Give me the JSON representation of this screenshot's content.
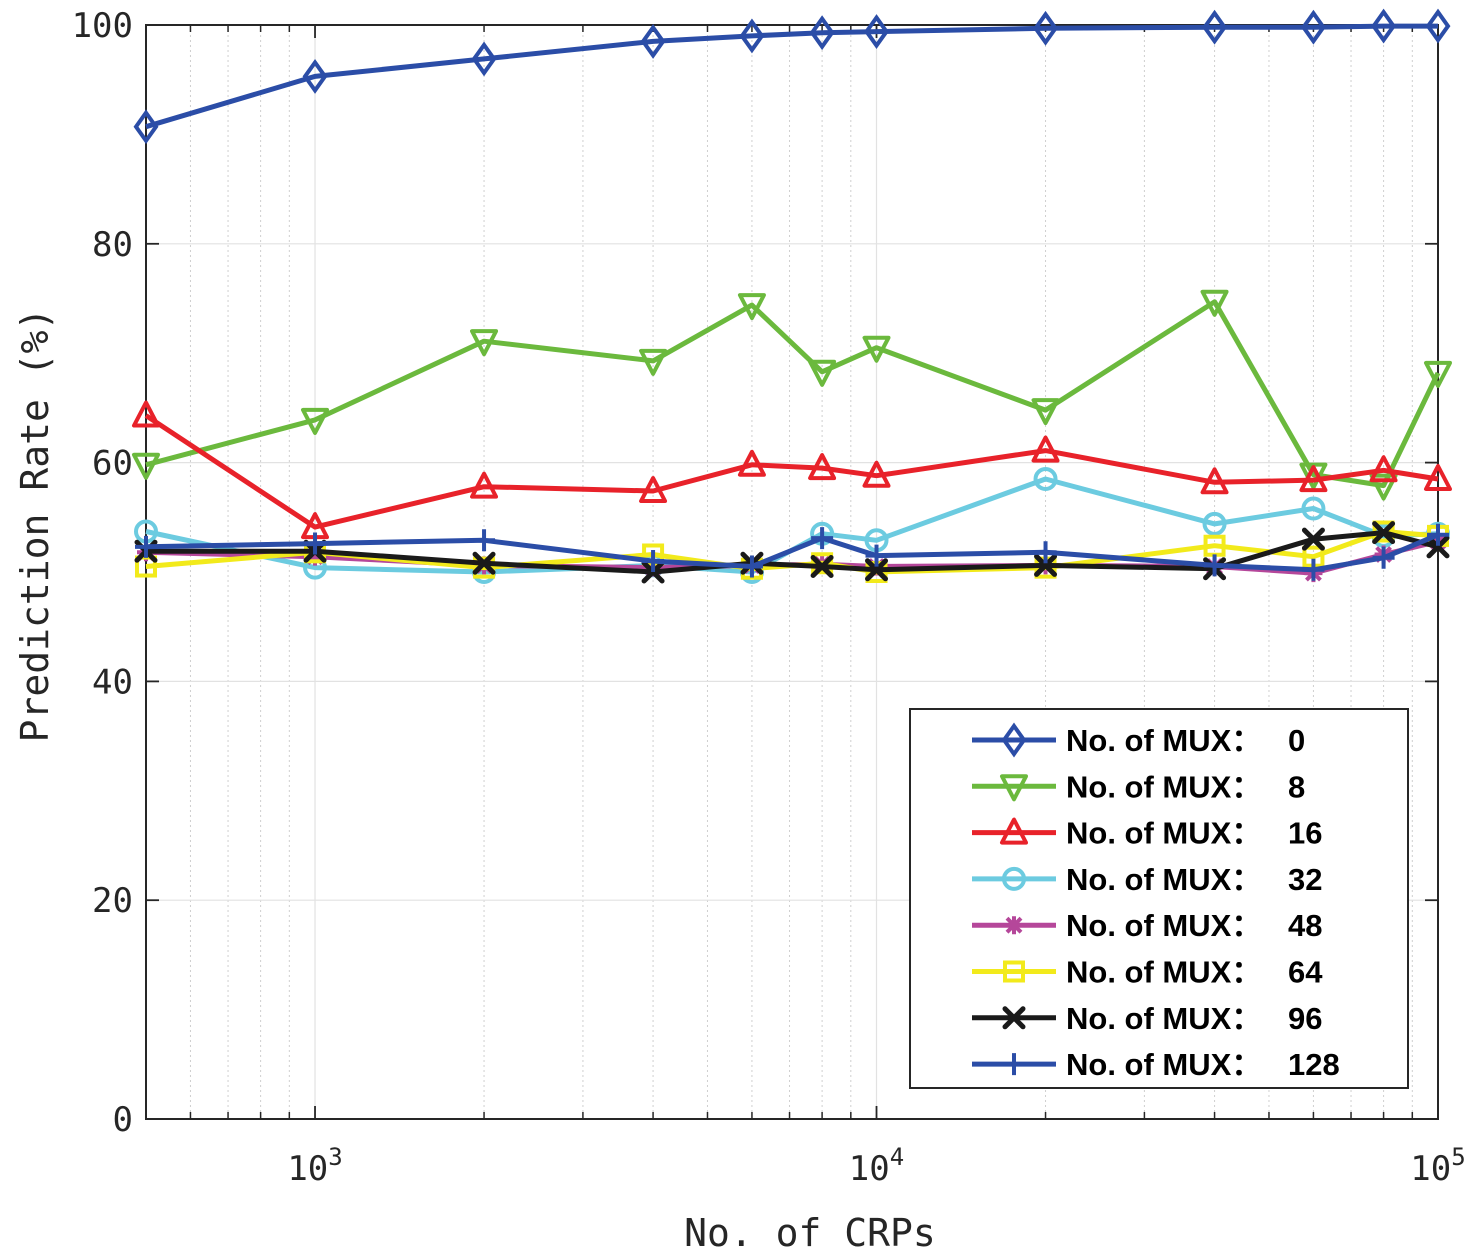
{
  "chart_data": {
    "type": "line",
    "xscale": "log",
    "xlabel": "No. of CRPs",
    "ylabel": "Prediction Rate (%)",
    "xlim": [
      500,
      100000
    ],
    "ylim": [
      0,
      100
    ],
    "yticks": [
      0,
      20,
      40,
      60,
      80,
      100
    ],
    "xticks": [
      {
        "value": 1000,
        "base": "10",
        "exp": "3"
      },
      {
        "value": 10000,
        "base": "10",
        "exp": "4"
      },
      {
        "value": 100000,
        "base": "10",
        "exp": "5"
      }
    ],
    "grid": true,
    "legend_position": "bottom-right",
    "x": [
      500,
      1000,
      2000,
      4000,
      6000,
      8000,
      10000,
      20000,
      40000,
      60000,
      80000,
      100000
    ],
    "series": [
      {
        "name": "No. of MUX：0",
        "label": "No. of MUX：",
        "label_value": "0",
        "color": "#2B4DA7",
        "marker": "diamond",
        "values": [
          90.7,
          95.3,
          96.9,
          98.5,
          99.0,
          99.3,
          99.4,
          99.7,
          99.8,
          99.8,
          99.9,
          99.9
        ]
      },
      {
        "name": "No. of MUX：8",
        "label": "No. of MUX：",
        "label_value": "8",
        "color": "#6BB93D",
        "marker": "triangle-down",
        "values": [
          59.8,
          63.9,
          71.1,
          69.3,
          74.4,
          68.3,
          70.5,
          64.8,
          74.7,
          58.9,
          57.9,
          68.2
        ]
      },
      {
        "name": "No. of MUX：16",
        "label": "No. of MUX：",
        "label_value": "16",
        "color": "#E8222A",
        "marker": "triangle-up",
        "values": [
          64.3,
          54.1,
          57.8,
          57.4,
          59.8,
          59.5,
          58.8,
          61.1,
          58.2,
          58.4,
          59.3,
          58.5
        ]
      },
      {
        "name": "No. of MUX：32",
        "label": "No. of MUX：",
        "label_value": "32",
        "color": "#6CCBE0",
        "marker": "circle",
        "values": [
          53.7,
          50.4,
          50.0,
          50.6,
          50.0,
          53.5,
          52.9,
          58.5,
          54.4,
          55.8,
          53.3,
          53.5
        ]
      },
      {
        "name": "No. of MUX：48",
        "label": "No. of MUX：",
        "label_value": "48",
        "color": "#B5479A",
        "marker": "asterisk",
        "values": [
          51.8,
          51.4,
          50.6,
          50.4,
          50.6,
          50.7,
          50.5,
          50.6,
          50.5,
          49.9,
          51.6,
          52.8
        ]
      },
      {
        "name": "No. of MUX：64",
        "label": "No. of MUX：",
        "label_value": "64",
        "color": "#F2EA1B",
        "marker": "square",
        "values": [
          50.5,
          51.8,
          50.4,
          51.6,
          50.3,
          50.8,
          50.0,
          50.4,
          52.4,
          51.4,
          53.7,
          53.3
        ]
      },
      {
        "name": "No. of MUX：96",
        "label": "No. of MUX：",
        "label_value": "96",
        "color": "#1A1A1A",
        "marker": "x",
        "values": [
          51.9,
          51.9,
          50.8,
          50.0,
          50.8,
          50.5,
          50.2,
          50.6,
          50.3,
          53.0,
          53.6,
          52.3
        ]
      },
      {
        "name": "No. of MUX：128",
        "label": "No. of MUX：",
        "label_value": "128",
        "color": "#2B4DA7",
        "marker": "plus",
        "values": [
          52.3,
          52.6,
          52.9,
          51.0,
          50.5,
          53.1,
          51.5,
          51.8,
          50.6,
          50.2,
          51.3,
          53.4
        ]
      }
    ]
  }
}
